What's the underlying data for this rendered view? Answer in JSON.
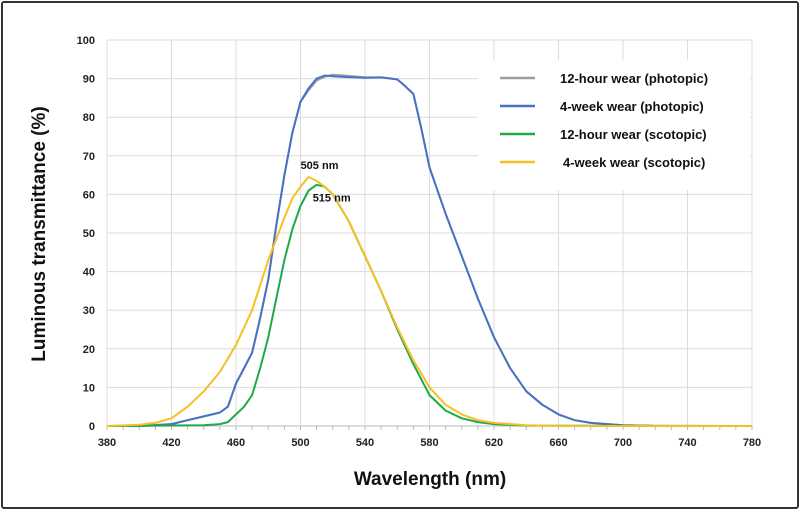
{
  "chart_data": {
    "type": "line",
    "xlabel": "Wavelength (nm)",
    "ylabel": "Luminous transmittance (%)",
    "xlim": [
      380,
      780
    ],
    "ylim": [
      0,
      100
    ],
    "x_ticks": [
      380,
      420,
      460,
      500,
      540,
      580,
      620,
      660,
      700,
      740,
      780
    ],
    "y_ticks": [
      0,
      10,
      20,
      30,
      40,
      50,
      60,
      70,
      80,
      90,
      100
    ],
    "grid": true,
    "legend_position": "top-right",
    "series": [
      {
        "name": "12-hour wear (photopic)",
        "color": "#9a9ca6",
        "x": [
          380,
          400,
          420,
          430,
          440,
          450,
          455,
          460,
          465,
          470,
          475,
          480,
          485,
          490,
          495,
          500,
          505,
          510,
          515,
          520,
          530,
          540,
          550,
          560,
          565,
          570,
          575,
          580,
          590,
          600,
          610,
          620,
          630,
          640,
          650,
          660,
          670,
          680,
          700,
          720,
          780
        ],
        "y": [
          0,
          0,
          0.5,
          1.5,
          2.5,
          3.5,
          5,
          11,
          15,
          19,
          28,
          38,
          52,
          65,
          76,
          84,
          87,
          89.5,
          90.5,
          91,
          90.7,
          90.3,
          90.3,
          89.8,
          88,
          86,
          77,
          67,
          55,
          44,
          33,
          23,
          15,
          9,
          5.5,
          3,
          1.5,
          0.8,
          0.2,
          0,
          0
        ]
      },
      {
        "name": "4-week wear (photopic)",
        "color": "#4a72c4",
        "x": [
          380,
          400,
          420,
          430,
          440,
          450,
          455,
          460,
          465,
          470,
          475,
          480,
          485,
          490,
          495,
          500,
          505,
          510,
          515,
          520,
          530,
          540,
          550,
          560,
          565,
          570,
          575,
          580,
          590,
          600,
          610,
          620,
          630,
          640,
          650,
          660,
          670,
          680,
          700,
          720,
          780
        ],
        "y": [
          0,
          0,
          0.5,
          1.5,
          2.5,
          3.5,
          5,
          11,
          15,
          19,
          28,
          38,
          52,
          65,
          76,
          84,
          87.5,
          90,
          90.8,
          90.6,
          90.4,
          90.2,
          90.3,
          89.8,
          88,
          86,
          77,
          67,
          55,
          44,
          33,
          23,
          15,
          9,
          5.5,
          3,
          1.5,
          0.8,
          0.2,
          0,
          0
        ]
      },
      {
        "name": "12-hour wear (scotopic)",
        "color": "#1faa4a",
        "x": [
          380,
          440,
          450,
          455,
          460,
          465,
          470,
          475,
          480,
          485,
          490,
          495,
          500,
          505,
          510,
          515,
          520,
          530,
          540,
          550,
          560,
          570,
          580,
          590,
          600,
          610,
          620,
          640,
          780
        ],
        "y": [
          0,
          0.2,
          0.5,
          1,
          3,
          5,
          8,
          15,
          23,
          33,
          43,
          51,
          57,
          61,
          62.5,
          62,
          60,
          53,
          44,
          35,
          25,
          16,
          8,
          4,
          2,
          1,
          0.5,
          0.1,
          0
        ]
      },
      {
        "name": "4-week wear (scotopic)",
        "color": "#f5c024",
        "x": [
          380,
          400,
          410,
          420,
          430,
          440,
          450,
          460,
          470,
          480,
          490,
          495,
          500,
          505,
          510,
          515,
          520,
          530,
          540,
          550,
          560,
          570,
          580,
          590,
          600,
          610,
          620,
          640,
          660,
          780
        ],
        "y": [
          0,
          0.3,
          0.8,
          2,
          5,
          9,
          14,
          21,
          30,
          43,
          54,
          59,
          62,
          64.5,
          63.5,
          62,
          60,
          53,
          44,
          35,
          25.5,
          17,
          10,
          5.5,
          3,
          1.5,
          0.8,
          0.2,
          0,
          0
        ]
      }
    ],
    "annotations": [
      {
        "text": "505 nm",
        "x": 505,
        "y": 64.5
      },
      {
        "text": "515 nm",
        "x": 515,
        "y": 62
      }
    ]
  }
}
